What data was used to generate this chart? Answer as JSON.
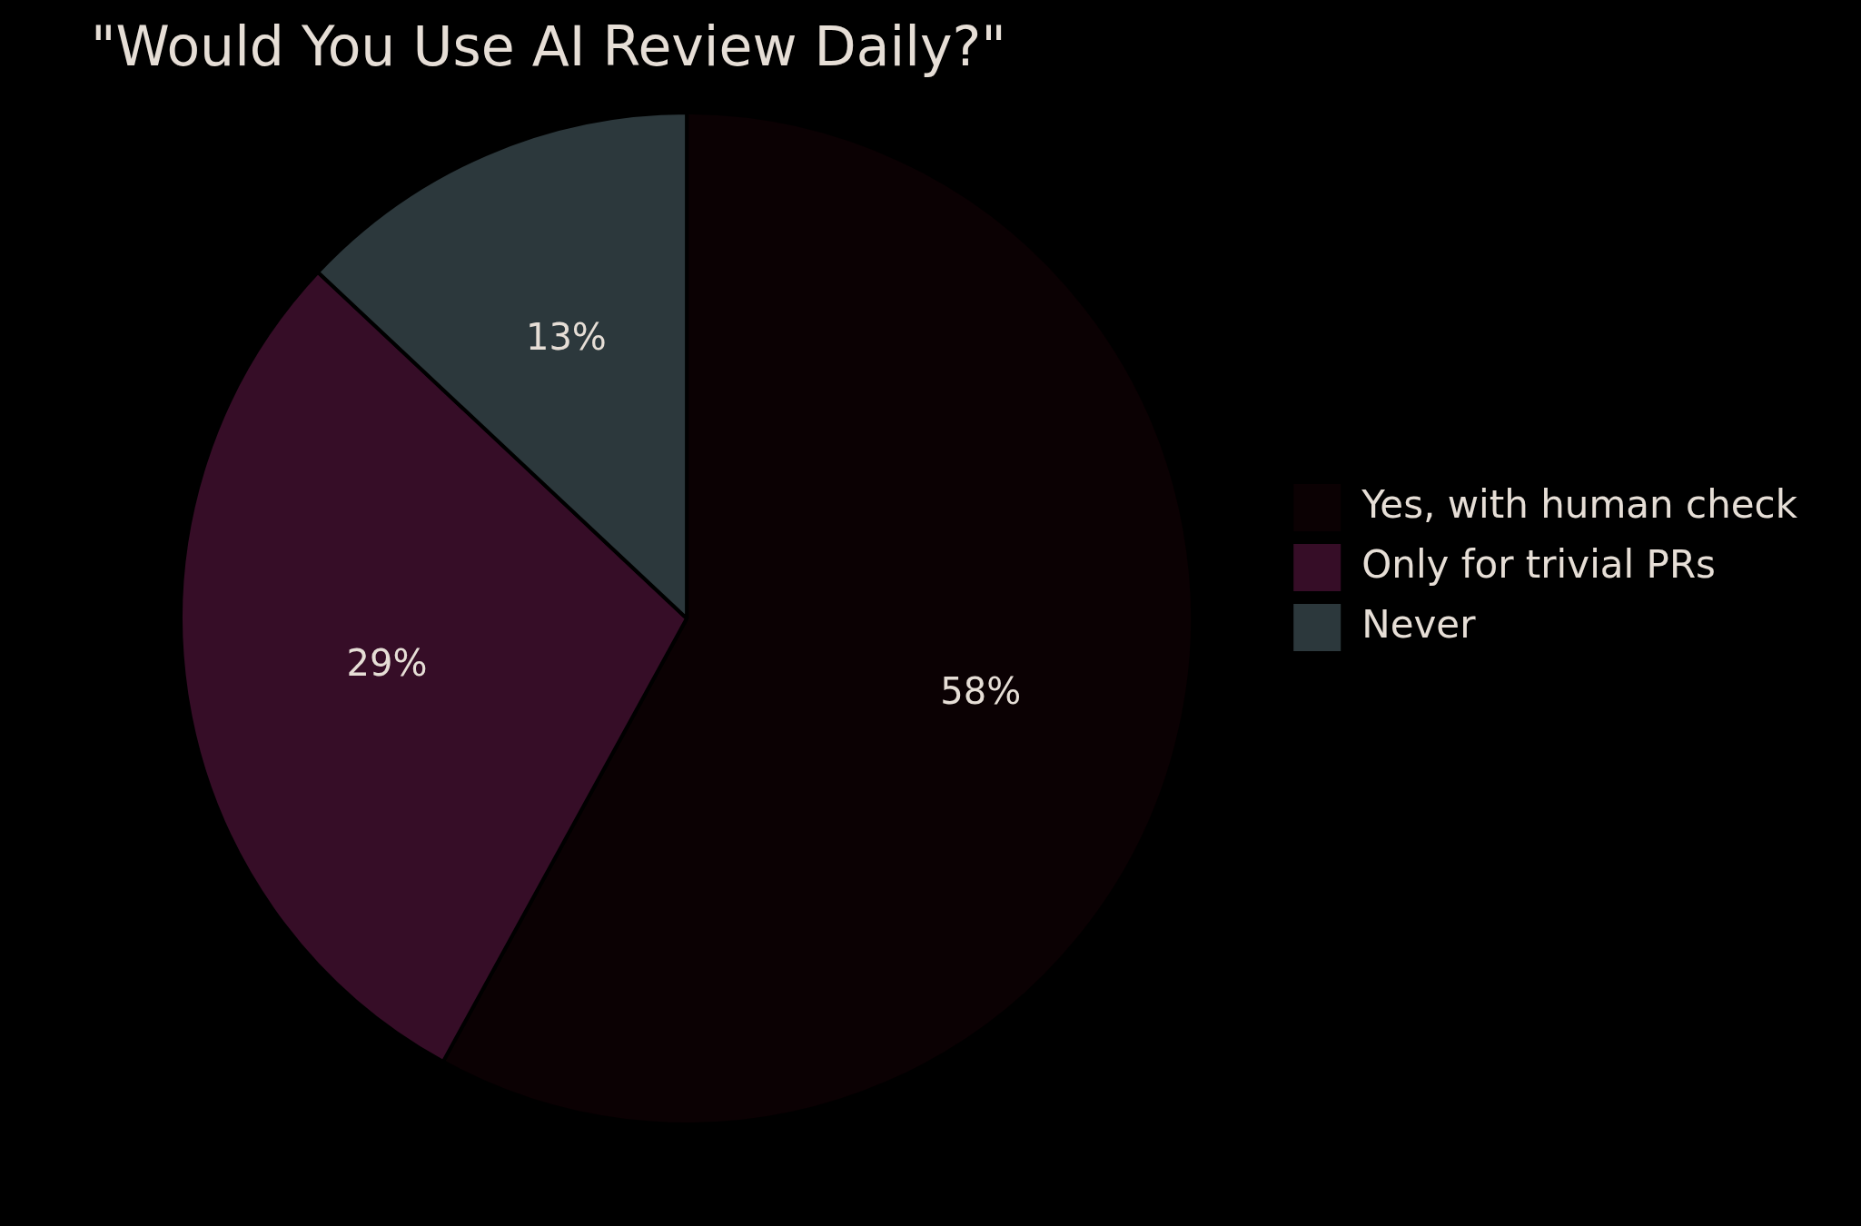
{
  "chart_data": {
    "type": "pie",
    "title": "\"Would You Use AI Review Daily?\"",
    "categories": [
      "Yes, with human check",
      "Only for trivial PRs",
      "Never"
    ],
    "values": [
      58,
      29,
      13
    ],
    "colors": [
      "#0b0103",
      "#360d27",
      "#2c383c"
    ],
    "value_labels": [
      "58%",
      "29%",
      "13%"
    ],
    "legend": "right"
  }
}
